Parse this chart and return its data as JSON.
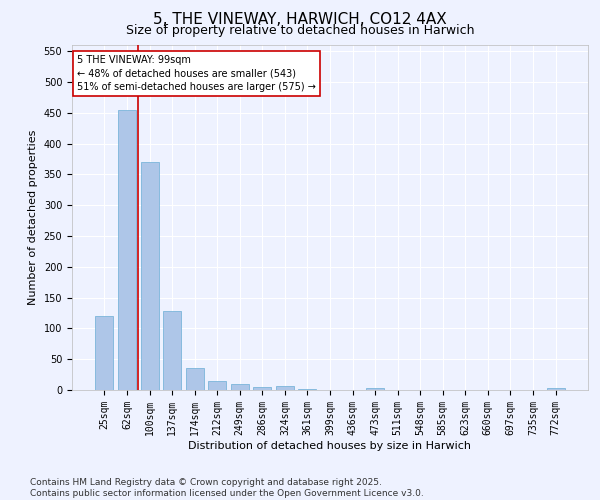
{
  "title": "5, THE VINEWAY, HARWICH, CO12 4AX",
  "subtitle": "Size of property relative to detached houses in Harwich",
  "xlabel": "Distribution of detached houses by size in Harwich",
  "ylabel": "Number of detached properties",
  "categories": [
    "25sqm",
    "62sqm",
    "100sqm",
    "137sqm",
    "174sqm",
    "212sqm",
    "249sqm",
    "286sqm",
    "324sqm",
    "361sqm",
    "399sqm",
    "436sqm",
    "473sqm",
    "511sqm",
    "548sqm",
    "585sqm",
    "623sqm",
    "660sqm",
    "697sqm",
    "735sqm",
    "772sqm"
  ],
  "values": [
    120,
    455,
    370,
    128,
    35,
    14,
    9,
    5,
    6,
    1,
    0,
    0,
    3,
    0,
    0,
    0,
    0,
    0,
    0,
    0,
    3
  ],
  "bar_color": "#aec6e8",
  "bar_edge_color": "#6aaed6",
  "vline_color": "#cc0000",
  "annotation_text": "5 THE VINEWAY: 99sqm\n← 48% of detached houses are smaller (543)\n51% of semi-detached houses are larger (575) →",
  "annotation_box_color": "#ffffff",
  "annotation_box_edge": "#cc0000",
  "footnote": "Contains HM Land Registry data © Crown copyright and database right 2025.\nContains public sector information licensed under the Open Government Licence v3.0.",
  "ylim": [
    0,
    560
  ],
  "yticks": [
    0,
    50,
    100,
    150,
    200,
    250,
    300,
    350,
    400,
    450,
    500,
    550
  ],
  "bg_color": "#eef2ff",
  "grid_color": "#ffffff",
  "title_fontsize": 11,
  "subtitle_fontsize": 9,
  "axis_label_fontsize": 8,
  "tick_fontsize": 7,
  "footnote_fontsize": 6.5
}
